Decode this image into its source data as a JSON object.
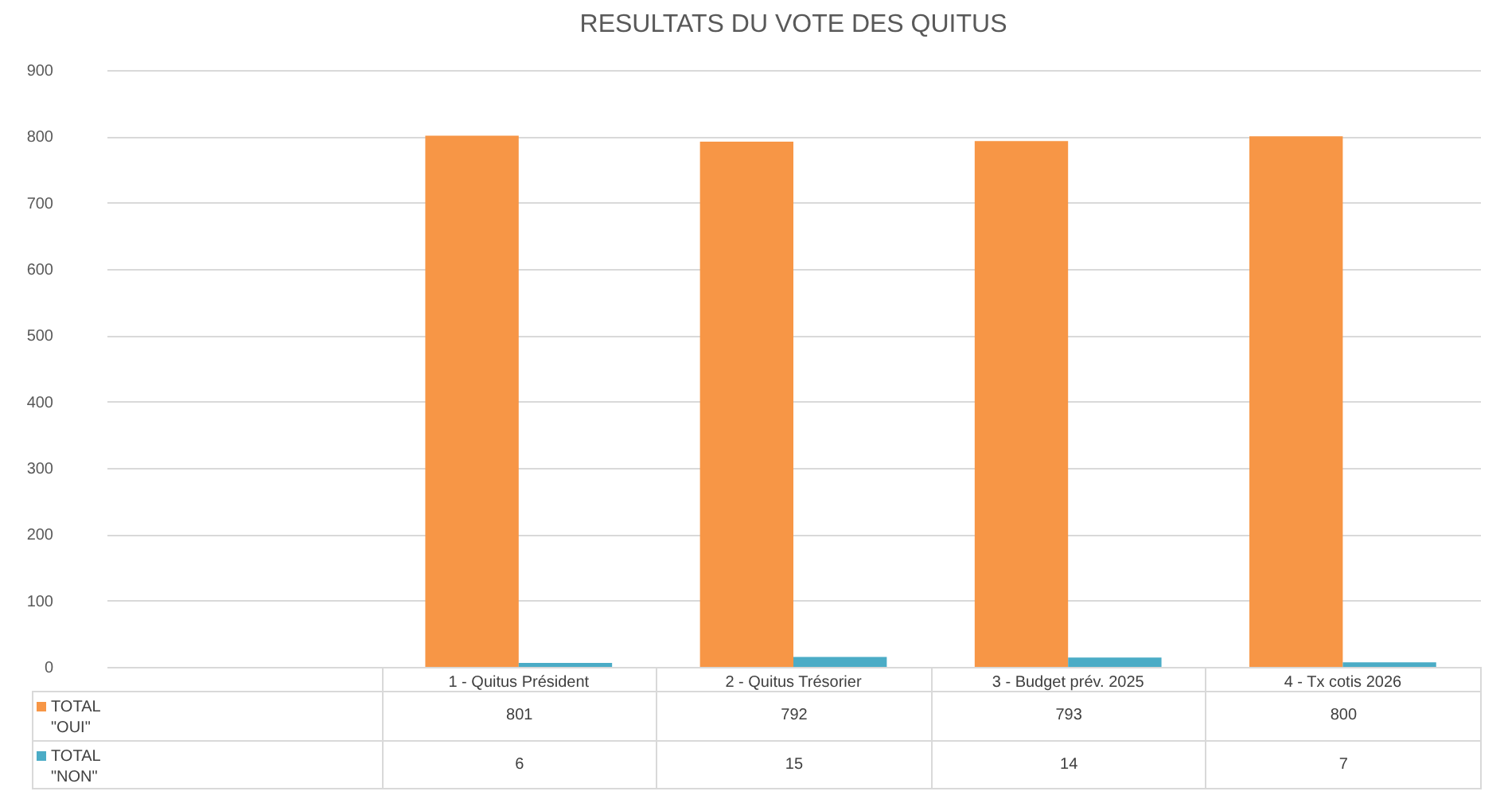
{
  "chart_data": {
    "type": "bar",
    "title": "RESULTATS DU VOTE DES QUITUS",
    "categories": [
      null,
      "1 - Quitus Président",
      "2 - Quitus Trésorier",
      "3 - Budget prév. 2025",
      "4 - Tx cotis 2026"
    ],
    "series": [
      {
        "name": "TOTAL \"OUI\"",
        "color": "#f79646",
        "values": [
          null,
          801,
          792,
          793,
          800
        ]
      },
      {
        "name": "TOTAL \"NON\"",
        "color": "#4bacc6",
        "values": [
          null,
          6,
          15,
          14,
          7
        ]
      }
    ],
    "ylim": [
      0,
      900
    ],
    "yticks": [
      0,
      100,
      200,
      300,
      400,
      500,
      600,
      700,
      800,
      900
    ],
    "grid": "y",
    "legend": "bottom",
    "data_labels": true
  }
}
